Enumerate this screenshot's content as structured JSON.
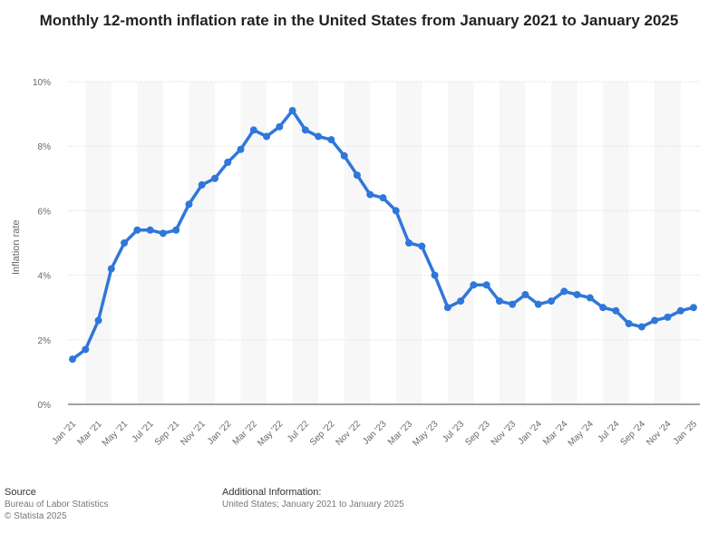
{
  "chart_data": {
    "type": "line",
    "title": "Monthly 12-month inflation rate in the United States from January 2021 to January 2025",
    "xlabel": "",
    "ylabel": "Inflation rate",
    "ylim": [
      0,
      10
    ],
    "yticks": [
      "0%",
      "2%",
      "4%",
      "6%",
      "8%",
      "10%"
    ],
    "ytick_values": [
      0,
      2,
      4,
      6,
      8,
      10
    ],
    "x": [
      "Jan 2021",
      "Feb 2021",
      "Mar 2021",
      "Apr 2021",
      "May 2021",
      "Jun 2021",
      "Jul 2021",
      "Aug 2021",
      "Sep 2021",
      "Oct 2021",
      "Nov 2021",
      "Dec 2021",
      "Jan 2022",
      "Feb 2022",
      "Mar 2022",
      "Apr 2022",
      "May 2022",
      "Jun 2022",
      "Jul 2022",
      "Aug 2022",
      "Sep 2022",
      "Oct 2022",
      "Nov 2022",
      "Dec 2022",
      "Jan 2023",
      "Feb 2023",
      "Mar 2023",
      "Apr 2023",
      "May 2023",
      "Jun 2023",
      "Jul 2023",
      "Aug 2023",
      "Sep 2023",
      "Oct 2023",
      "Nov 2023",
      "Dec 2023",
      "Jan 2024",
      "Feb 2024",
      "Mar 2024",
      "Apr 2024",
      "May 2024",
      "Jun 2024",
      "Jul 2024",
      "Aug 2024",
      "Sep 2024",
      "Oct 2024",
      "Nov 2024",
      "Dec 2024",
      "Jan 2025"
    ],
    "xtick_labels": [
      "Jan '21",
      "Mar '21",
      "May '21",
      "Jul '21",
      "Sep '21",
      "Nov '21",
      "Jan '22",
      "Mar '22",
      "May '22",
      "Jul '22",
      "Sep '22",
      "Nov '22",
      "Jan '23",
      "Mar '23",
      "May '23",
      "Jul '23",
      "Sep '23",
      "Nov '23",
      "Jan '24",
      "Mar '24",
      "May '24",
      "Jul '24",
      "Sep '24",
      "Nov '24",
      "Jan '25"
    ],
    "series": [
      {
        "name": "Inflation rate",
        "values": [
          1.4,
          1.7,
          2.6,
          4.2,
          5.0,
          5.4,
          5.4,
          5.3,
          5.4,
          6.2,
          6.8,
          7.0,
          7.5,
          7.9,
          8.5,
          8.3,
          8.6,
          9.1,
          8.5,
          8.3,
          8.2,
          7.7,
          7.1,
          6.5,
          6.4,
          6.0,
          5.0,
          4.9,
          4.0,
          3.0,
          3.2,
          3.7,
          3.7,
          3.2,
          3.1,
          3.4,
          3.1,
          3.2,
          3.5,
          3.4,
          3.3,
          3.0,
          2.9,
          2.5,
          2.4,
          2.6,
          2.7,
          2.9,
          3.0
        ]
      }
    ],
    "colors": {
      "line": "#2f77d9",
      "band": "#f7f7f7",
      "grid": "#d5d5d5",
      "axis": "#444444",
      "tick_text": "#666666"
    }
  },
  "footer": {
    "source_heading": "Source",
    "source_line1": "Bureau of Labor Statistics",
    "source_line2": "© Statista 2025",
    "additional_heading": "Additional Information:",
    "additional_text": "United States; January 2021 to January 2025"
  }
}
